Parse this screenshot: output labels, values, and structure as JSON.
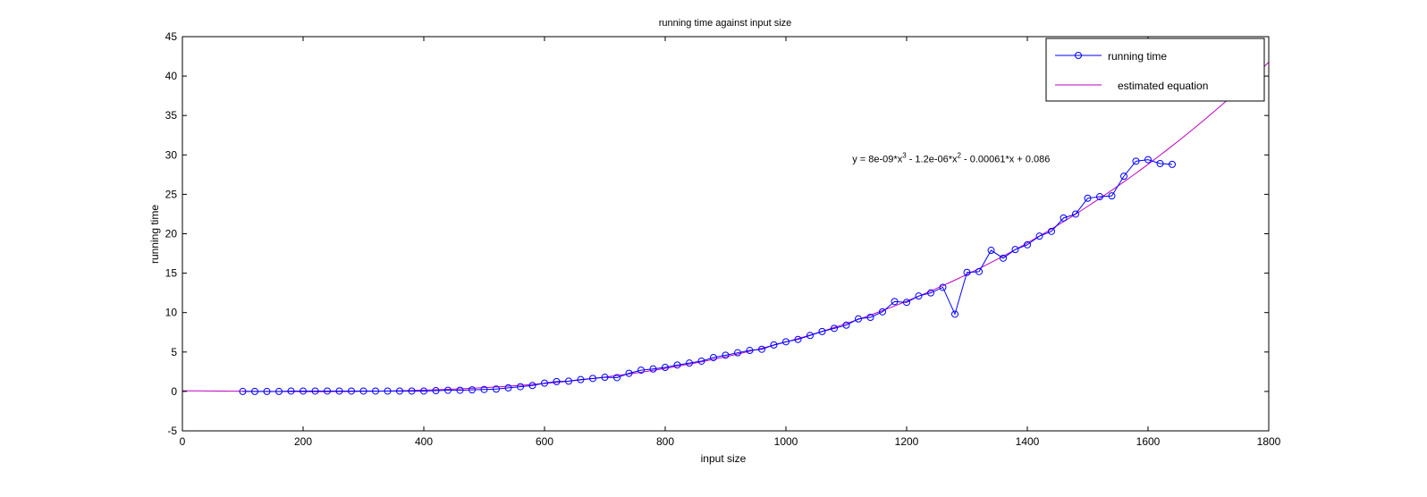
{
  "chart_data": {
    "type": "line",
    "title": "running time against input size",
    "xlabel": "input size",
    "ylabel": "running time",
    "xlim": [
      0,
      1800
    ],
    "ylim": [
      -5,
      45
    ],
    "xticks": [
      0,
      200,
      400,
      600,
      800,
      1000,
      1200,
      1400,
      1600,
      1800
    ],
    "yticks": [
      -5,
      0,
      5,
      10,
      15,
      20,
      25,
      30,
      35,
      40,
      45
    ],
    "grid": false,
    "legend_position": "top-right",
    "annotation": {
      "text": "y = 8e-09*x^3 - 1.2e-06*x^2 - 0.00061*x + 0.086",
      "x": 1110,
      "y": 29.5,
      "parts": {
        "a": "y = 8e-09*x",
        "b": "3",
        "c": " - 1.2e-06*x",
        "d": "2",
        "e": " - 0.00061*x + 0.086"
      }
    },
    "series": [
      {
        "name": "running time",
        "color": "#0000ff",
        "marker": "circle",
        "x": [
          100,
          120,
          140,
          160,
          180,
          200,
          220,
          240,
          260,
          280,
          300,
          320,
          340,
          360,
          380,
          400,
          420,
          440,
          460,
          480,
          500,
          520,
          540,
          560,
          580,
          600,
          620,
          640,
          660,
          680,
          700,
          720,
          740,
          760,
          780,
          800,
          820,
          840,
          860,
          880,
          900,
          920,
          940,
          960,
          980,
          1000,
          1020,
          1040,
          1060,
          1080,
          1100,
          1120,
          1140,
          1160,
          1180,
          1200,
          1220,
          1240,
          1260,
          1280,
          1300,
          1320,
          1340,
          1360,
          1380,
          1400,
          1420,
          1440,
          1460,
          1480,
          1500,
          1520,
          1540,
          1560,
          1580,
          1600,
          1620,
          1640
        ],
        "y": [
          0.0,
          0.0,
          0.0,
          0.0,
          0.05,
          0.05,
          0.05,
          0.05,
          0.05,
          0.05,
          0.05,
          0.05,
          0.05,
          0.05,
          0.05,
          0.05,
          0.1,
          0.15,
          0.15,
          0.2,
          0.25,
          0.3,
          0.45,
          0.6,
          0.75,
          1.05,
          1.25,
          1.3,
          1.5,
          1.65,
          1.8,
          1.75,
          2.3,
          2.7,
          2.85,
          3.05,
          3.35,
          3.6,
          3.85,
          4.3,
          4.6,
          4.9,
          5.2,
          5.35,
          5.9,
          6.3,
          6.6,
          7.1,
          7.6,
          8.0,
          8.4,
          9.2,
          9.4,
          10.1,
          11.4,
          11.3,
          12.1,
          12.5,
          13.2,
          9.8,
          15.1,
          15.2,
          17.9,
          16.9,
          18.0,
          18.6,
          19.7,
          20.3,
          22.0,
          22.5,
          24.5,
          24.7,
          24.8,
          27.3,
          29.2,
          29.4,
          28.9,
          28.8
        ]
      },
      {
        "name": "estimated equation",
        "color": "#bf00bf",
        "marker": "none",
        "equation": {
          "a": 8e-09,
          "b": -1.2e-06,
          "c": -0.00061,
          "d": 0.086
        },
        "x_range": [
          0,
          1800
        ]
      }
    ]
  }
}
